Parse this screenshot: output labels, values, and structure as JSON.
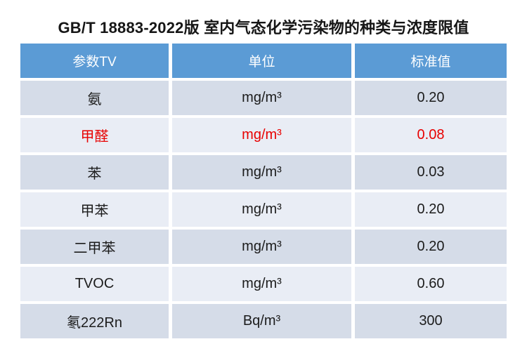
{
  "chart_data": {
    "type": "table",
    "title": "GB/T 18883-2022版 室内气态化学污染物的种类与浓度限值",
    "columns": [
      "参数TV",
      "单位",
      "标准值"
    ],
    "rows": [
      {
        "param": "氨",
        "unit": "mg/m³",
        "value": "0.20",
        "highlight": false
      },
      {
        "param": "甲醛",
        "unit": "mg/m³",
        "value": "0.08",
        "highlight": true
      },
      {
        "param": "苯",
        "unit": "mg/m³",
        "value": "0.03",
        "highlight": false
      },
      {
        "param": "甲苯",
        "unit": "mg/m³",
        "value": "0.20",
        "highlight": false
      },
      {
        "param": "二甲苯",
        "unit": "mg/m³",
        "value": "0.20",
        "highlight": false
      },
      {
        "param": "TVOC",
        "unit": "mg/m³",
        "value": "0.60",
        "highlight": false
      },
      {
        "param": "氡222Rn",
        "unit": "Bq/m³",
        "value": "300",
        "highlight": false
      }
    ],
    "legend": null,
    "grid": false
  },
  "colors": {
    "header_bg": "#5b9bd5",
    "header_text": "#ffffff",
    "row_band_dark": "#d5dce8",
    "row_band_light": "#e9edf5",
    "highlight_text": "#e80000",
    "body_text": "#1c1c1c",
    "background": "#ffffff"
  }
}
